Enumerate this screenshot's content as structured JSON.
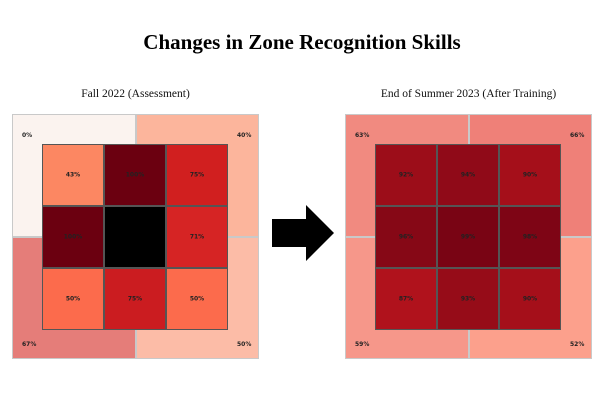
{
  "title": "Changes in Zone Recognition Skills",
  "chart_data": [
    {
      "type": "heatmap",
      "title": "Fall 2022 (Assessment)",
      "outer_zones": [
        {
          "label": "0%",
          "value": 0,
          "color": "#fbf3ef"
        },
        {
          "label": "40%",
          "value": 40,
          "color": "#fcb59c"
        },
        {
          "label": "67%",
          "value": 67,
          "color": "#e57d79"
        },
        {
          "label": "50%",
          "value": 50,
          "color": "#fcbca7"
        }
      ],
      "strike_zone": [
        [
          {
            "label": "43%",
            "value": 43,
            "color": "#fc8762"
          },
          {
            "label": "100%",
            "value": 100,
            "color": "#6b0010"
          },
          {
            "label": "75%",
            "value": 75,
            "color": "#d11f1f"
          }
        ],
        [
          {
            "label": "100%",
            "value": 100,
            "color": "#6b0010"
          },
          {
            "label": "",
            "value": null,
            "color": "#000000"
          },
          {
            "label": "71%",
            "value": 71,
            "color": "#d62424"
          }
        ],
        [
          {
            "label": "50%",
            "value": 50,
            "color": "#fc6b4c"
          },
          {
            "label": "75%",
            "value": 75,
            "color": "#cb1c20"
          },
          {
            "label": "50%",
            "value": 50,
            "color": "#fc6b4c"
          }
        ]
      ]
    },
    {
      "type": "heatmap",
      "title": "End of Summer 2023 (After Training)",
      "outer_zones": [
        {
          "label": "63%",
          "value": 63,
          "color": "#f18a80"
        },
        {
          "label": "66%",
          "value": 66,
          "color": "#ef8078"
        },
        {
          "label": "59%",
          "value": 59,
          "color": "#f6978a"
        },
        {
          "label": "52%",
          "value": 52,
          "color": "#fca08c"
        }
      ],
      "strike_zone": [
        [
          {
            "label": "92%",
            "value": 92,
            "color": "#9c0d19"
          },
          {
            "label": "94%",
            "value": 94,
            "color": "#900a18"
          },
          {
            "label": "90%",
            "value": 90,
            "color": "#a50f1a"
          }
        ],
        [
          {
            "label": "96%",
            "value": 96,
            "color": "#860816"
          },
          {
            "label": "99%",
            "value": 99,
            "color": "#790414"
          },
          {
            "label": "98%",
            "value": 98,
            "color": "#7e0515"
          }
        ],
        [
          {
            "label": "87%",
            "value": 87,
            "color": "#b0121c"
          },
          {
            "label": "93%",
            "value": 93,
            "color": "#960c18"
          },
          {
            "label": "90%",
            "value": 90,
            "color": "#a50f1a"
          }
        ]
      ]
    }
  ]
}
